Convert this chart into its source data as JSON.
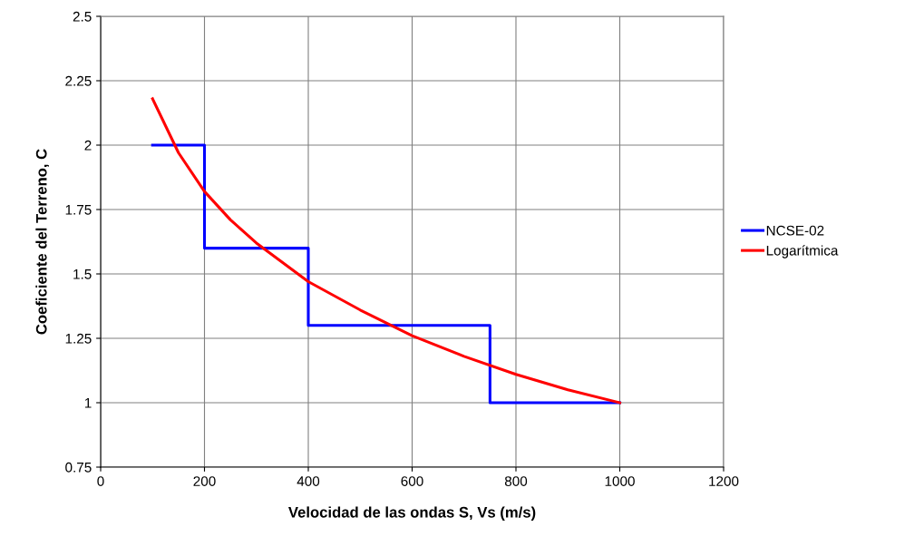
{
  "chart_data": {
    "type": "line",
    "xlabel": "Velocidad de las ondas S, Vs (m/s)",
    "ylabel": "Coeficiente del Terreno, C",
    "series": [
      {
        "name": "NCSE-02",
        "color": "#0000ff",
        "x": [
          100,
          200,
          200,
          400,
          400,
          750,
          750,
          1000
        ],
        "values": [
          2,
          2,
          1.6,
          1.6,
          1.3,
          1.3,
          1,
          1
        ]
      },
      {
        "name": "Logarítmica",
        "color": "#ff0000",
        "x": [
          100,
          150,
          200,
          250,
          300,
          400,
          500,
          600,
          700,
          800,
          900,
          1000
        ],
        "values": [
          2.18,
          1.97,
          1.82,
          1.71,
          1.62,
          1.47,
          1.36,
          1.26,
          1.18,
          1.11,
          1.05,
          1.0
        ]
      }
    ],
    "xlim": [
      0,
      1200
    ],
    "xticks": [
      0,
      200,
      400,
      600,
      800,
      1000,
      1200
    ],
    "ylim": [
      0.75,
      2.5
    ],
    "yticks": [
      0.75,
      1,
      1.25,
      1.5,
      1.75,
      2,
      2.25,
      2.5
    ],
    "grid": true,
    "legend": "right",
    "marker": "none",
    "line_style": "solid"
  }
}
